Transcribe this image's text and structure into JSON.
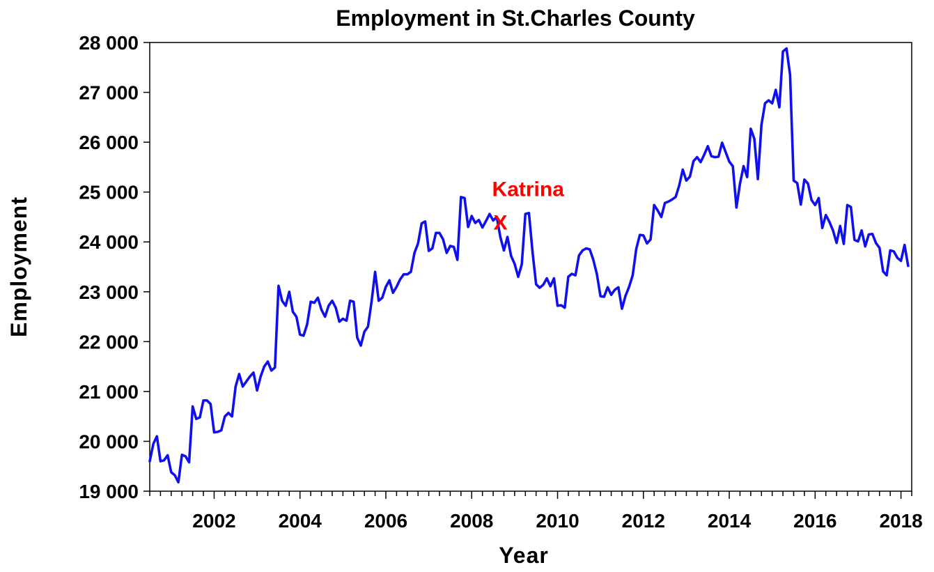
{
  "chart_data": {
    "type": "line",
    "title": "Employment in St.Charles County",
    "xlabel": "Year",
    "ylabel": "Employment",
    "xlim": [
      2000.5,
      2018.25
    ],
    "ylim": [
      19000,
      28000
    ],
    "grid": false,
    "x_ticks": [
      2002,
      2004,
      2006,
      2008,
      2010,
      2012,
      2014,
      2016,
      2018
    ],
    "x_tick_labels": [
      "2002",
      "2004",
      "2006",
      "2008",
      "2010",
      "2012",
      "2014",
      "2016",
      "2018"
    ],
    "y_ticks": [
      19000,
      20000,
      21000,
      22000,
      23000,
      24000,
      25000,
      26000,
      27000,
      28000
    ],
    "y_tick_labels": [
      "19 000",
      "20 000",
      "21 000",
      "22 000",
      "23 000",
      "24 000",
      "25 000",
      "26 000",
      "27 000",
      "28 000"
    ],
    "series": [
      {
        "color": "#1010ee",
        "start": 2000.5,
        "step": 0.083333,
        "values": [
          19600,
          19950,
          20100,
          19600,
          19620,
          19720,
          19380,
          19320,
          19180,
          19730,
          19700,
          19580,
          20700,
          20450,
          20480,
          20820,
          20820,
          20750,
          20180,
          20190,
          20220,
          20500,
          20570,
          20500,
          21100,
          21350,
          21100,
          21200,
          21300,
          21380,
          21020,
          21300,
          21500,
          21600,
          21420,
          21480,
          23120,
          22820,
          22720,
          23000,
          22600,
          22500,
          22140,
          22120,
          22350,
          22800,
          22780,
          22880,
          22640,
          22500,
          22720,
          22820,
          22680,
          22400,
          22460,
          22420,
          22820,
          22800,
          22080,
          21920,
          22200,
          22300,
          22800,
          23400,
          22820,
          22880,
          23100,
          23230,
          22980,
          23100,
          23250,
          23350,
          23350,
          23400,
          23780,
          23970,
          24370,
          24410,
          23820,
          23870,
          24180,
          24180,
          24050,
          23780,
          23920,
          23900,
          23640,
          24900,
          24880,
          24300,
          24520,
          24380,
          24440,
          24290,
          24420,
          24560,
          24430,
          24500,
          24100,
          23830,
          24100,
          23720,
          23560,
          23300,
          23550,
          24560,
          24580,
          23800,
          23150,
          23080,
          23140,
          23270,
          23110,
          23270,
          22720,
          22730,
          22680,
          23300,
          23360,
          23330,
          23730,
          23830,
          23870,
          23850,
          23640,
          23350,
          22910,
          22900,
          23090,
          22940,
          23040,
          23090,
          22660,
          22920,
          23100,
          23330,
          23860,
          24140,
          24130,
          23970,
          24050,
          24740,
          24630,
          24500,
          24780,
          24810,
          24850,
          24900,
          25130,
          25450,
          25230,
          25310,
          25620,
          25700,
          25600,
          25750,
          25920,
          25720,
          25700,
          25710,
          25990,
          25800,
          25610,
          25520,
          24690,
          25170,
          25520,
          25300,
          26270,
          26070,
          25260,
          26350,
          26780,
          26840,
          26780,
          27050,
          26700,
          27820,
          27880,
          27350,
          25230,
          25180,
          24750,
          25250,
          25170,
          24840,
          24740,
          24880,
          24280,
          24540,
          24400,
          24230,
          23980,
          24320,
          23960,
          24740,
          24700,
          24040,
          24010,
          24230,
          23910,
          24150,
          24160,
          23980,
          23880,
          23410,
          23330,
          23830,
          23810,
          23680,
          23620,
          23940,
          23520
        ]
      }
    ],
    "annotations": [
      {
        "label": "Katrina",
        "marker": "X",
        "x": 2008.67,
        "y": 24400,
        "color": "#ff0000"
      }
    ]
  }
}
